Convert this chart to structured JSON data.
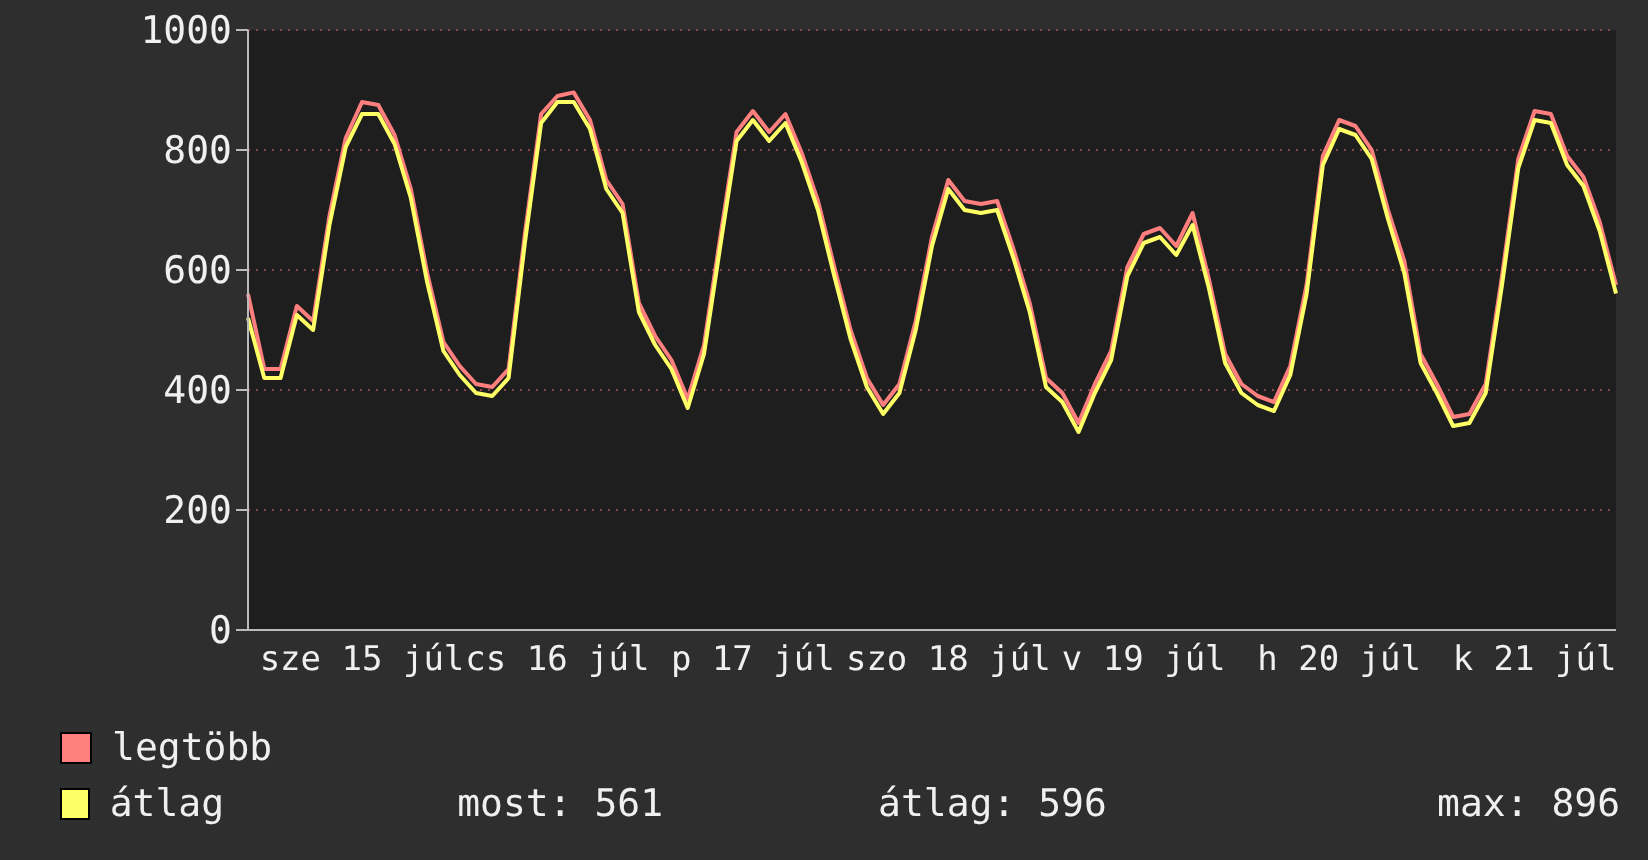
{
  "chart_data": {
    "type": "line",
    "categories": [
      null,
      null,
      null,
      null,
      null,
      null,
      null,
      "sze 15 júl",
      null,
      null,
      null,
      null,
      null,
      null,
      null,
      null,
      null,
      null,
      null,
      "cs 16 júl",
      null,
      null,
      null,
      null,
      null,
      null,
      null,
      null,
      null,
      null,
      null,
      "p 17 júl",
      null,
      null,
      null,
      null,
      null,
      null,
      null,
      null,
      null,
      null,
      null,
      "szo 18 júl",
      null,
      null,
      null,
      null,
      null,
      null,
      null,
      null,
      null,
      null,
      null,
      "v 19 júl",
      null,
      null,
      null,
      null,
      null,
      null,
      null,
      null,
      null,
      null,
      null,
      "h 20 júl",
      null,
      null,
      null,
      null,
      null,
      null,
      null,
      null,
      null,
      null,
      null,
      "k 21 júl",
      null,
      null,
      null,
      null,
      null
    ],
    "series": [
      {
        "name": "legtöbb",
        "color": "#ff7f7f",
        "values": [
          560,
          435,
          435,
          540,
          515,
          690,
          820,
          880,
          875,
          825,
          735,
          595,
          480,
          440,
          410,
          405,
          435,
          660,
          860,
          890,
          896,
          850,
          750,
          710,
          545,
          490,
          450,
          385,
          475,
          655,
          830,
          865,
          830,
          860,
          795,
          715,
          605,
          500,
          420,
          375,
          410,
          515,
          655,
          750,
          715,
          710,
          715,
          635,
          545,
          420,
          395,
          345,
          410,
          465,
          605,
          660,
          670,
          640,
          695,
          585,
          460,
          410,
          390,
          380,
          440,
          575,
          790,
          850,
          840,
          800,
          700,
          615,
          460,
          410,
          355,
          360,
          410,
          590,
          785,
          865,
          860,
          790,
          755,
          680,
          575
        ]
      },
      {
        "name": "átlag",
        "color": "#ffff66",
        "values": [
          520,
          420,
          420,
          525,
          500,
          675,
          805,
          860,
          860,
          810,
          720,
          580,
          465,
          425,
          395,
          390,
          420,
          645,
          845,
          880,
          880,
          835,
          735,
          695,
          530,
          475,
          435,
          370,
          460,
          640,
          815,
          850,
          815,
          845,
          780,
          700,
          590,
          485,
          405,
          360,
          395,
          500,
          640,
          735,
          700,
          695,
          700,
          620,
          530,
          405,
          380,
          330,
          395,
          450,
          590,
          645,
          655,
          625,
          675,
          570,
          445,
          395,
          375,
          365,
          425,
          560,
          775,
          835,
          825,
          785,
          685,
          595,
          445,
          395,
          340,
          345,
          395,
          575,
          770,
          850,
          845,
          775,
          740,
          665,
          561
        ]
      }
    ],
    "ylim": [
      0,
      1000
    ],
    "yticks": [
      0,
      200,
      400,
      600,
      800,
      1000
    ],
    "grid": true,
    "legend": "bottom",
    "annotations": [
      "most: 561",
      "átlag: 596",
      "max: 896"
    ]
  }
}
